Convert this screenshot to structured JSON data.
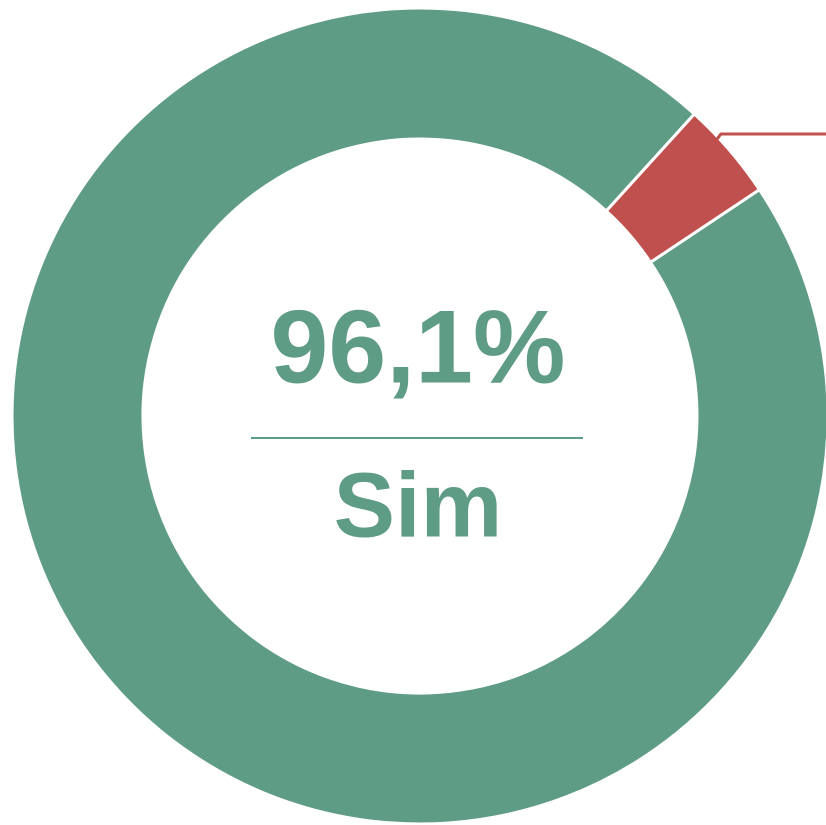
{
  "chart_data": {
    "type": "donut",
    "categories": [
      "Sim",
      null
    ],
    "values": [
      96.1,
      3.9
    ],
    "value_labels": [
      "96,1%",
      null
    ],
    "colors": [
      "#5f9c86",
      "#c0504d"
    ]
  }
}
